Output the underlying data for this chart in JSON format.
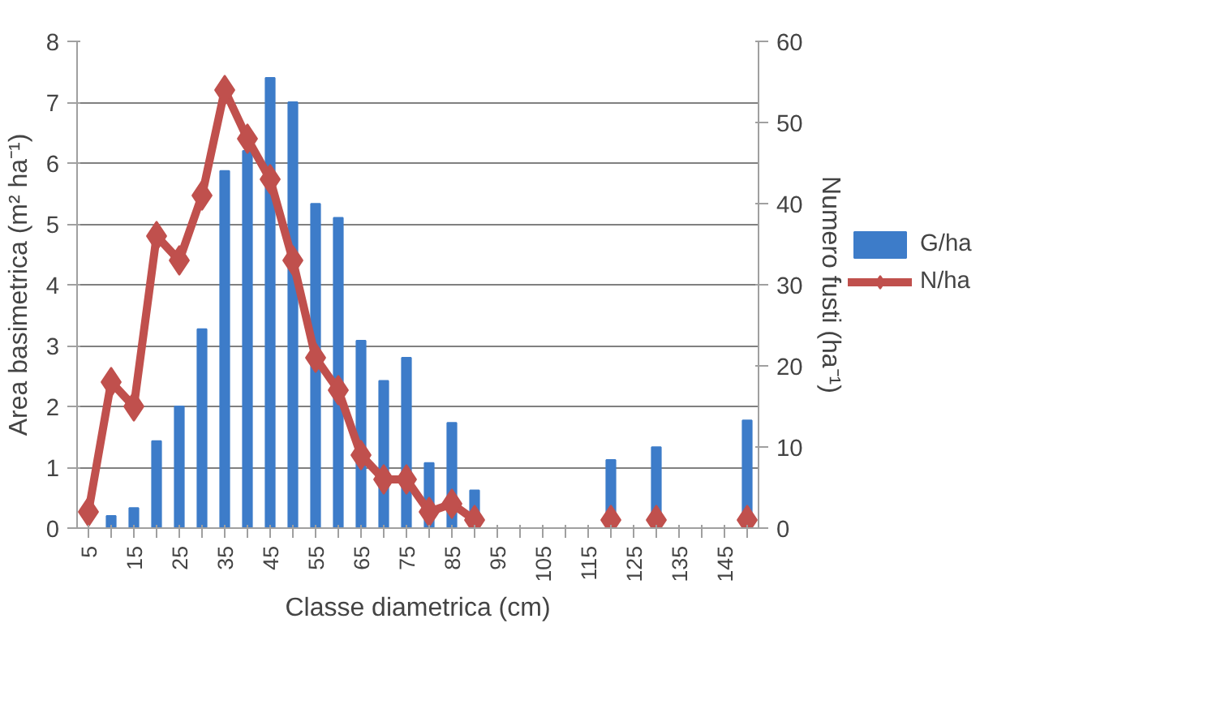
{
  "chart_data": {
    "type": "bar",
    "xlabel": "Classe diametrica (cm)",
    "ylabel": "Area basimetrica (m² ha⁻¹)",
    "y2label": "Numero fusti (ha⁻¹)",
    "categories": [
      "5",
      null,
      "15",
      null,
      "25",
      null,
      "35",
      null,
      "45",
      null,
      "55",
      null,
      "65",
      null,
      "75",
      null,
      "85",
      null,
      "95",
      null,
      "105",
      null,
      "115",
      null,
      "125",
      null,
      "135",
      null,
      "145",
      null
    ],
    "series": [
      {
        "name": "G/ha",
        "color": "#3d7cc9",
        "values": [
          null,
          0.2,
          0.33,
          1.43,
          2.0,
          3.27,
          5.87,
          6.2,
          7.4,
          7.0,
          5.33,
          5.1,
          3.08,
          2.42,
          2.8,
          1.07,
          1.73,
          0.62,
          0,
          0,
          0,
          0,
          0,
          1.12,
          0,
          1.33,
          0,
          0,
          0,
          1.77
        ]
      },
      {
        "name": "N/ha",
        "type": "line",
        "axis": "y2",
        "color": "#c0504d",
        "marker": "diamond",
        "values": [
          2,
          18,
          15,
          36,
          33,
          41,
          54,
          48,
          43,
          33,
          21,
          17,
          9,
          6,
          6,
          2,
          3,
          1,
          null,
          null,
          null,
          null,
          null,
          1,
          null,
          1,
          null,
          null,
          null,
          1
        ]
      }
    ],
    "ylim": [
      0,
      8
    ],
    "yticks": [
      0,
      1,
      2,
      3,
      4,
      5,
      6,
      7,
      8
    ],
    "y2lim": [
      0,
      60
    ],
    "y2ticks": [
      0,
      10,
      20,
      30,
      40,
      50,
      60
    ],
    "grid": "y",
    "legend": "right"
  }
}
